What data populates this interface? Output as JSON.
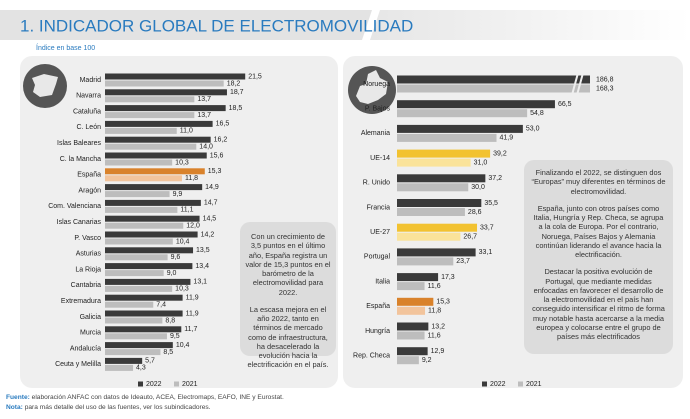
{
  "header": {
    "title": "1. INDICADOR GLOBAL DE ELECTROMOVILIDAD",
    "subtitle": "Índice en base 100"
  },
  "chart_data": [
    {
      "type": "hbar",
      "categories": [
        "Madrid",
        "Navarra",
        "Cataluña",
        "C. León",
        "Islas Baleares",
        "C. la Mancha",
        "España",
        "Aragón",
        "Com. Valenciana",
        "Islas Canarias",
        "P. Vasco",
        "Asturias",
        "La Rioja",
        "Cantabria",
        "Extremadura",
        "Galicia",
        "Murcia",
        "Andalucía",
        "Ceuta y Melilla"
      ],
      "series": [
        {
          "name": "2022",
          "color": "#3a3a3a",
          "colors": [
            "#3a3a3a",
            "#3a3a3a",
            "#3a3a3a",
            "#3a3a3a",
            "#3a3a3a",
            "#3a3a3a",
            "#d9822b",
            "#3a3a3a",
            "#3a3a3a",
            "#3a3a3a",
            "#3a3a3a",
            "#3a3a3a",
            "#3a3a3a",
            "#3a3a3a",
            "#3a3a3a",
            "#3a3a3a",
            "#3a3a3a",
            "#3a3a3a",
            "#3a3a3a"
          ],
          "values": [
            21.5,
            18.7,
            18.5,
            16.5,
            16.2,
            15.6,
            15.3,
            14.9,
            14.7,
            14.5,
            14.2,
            13.5,
            13.4,
            13.1,
            11.9,
            11.9,
            11.7,
            10.4,
            5.7
          ],
          "value_labels": [
            "21,5",
            "18,7",
            "18,5",
            "16,5",
            "16,2",
            "15,6",
            "15,3",
            "14,9",
            "14,7",
            "14,5",
            "14,2",
            "13,5",
            "13,4",
            "13,1",
            "11,9",
            "11,9",
            "11,7",
            "10,4",
            "5,7"
          ]
        },
        {
          "name": "2021",
          "color": "#bdbdbd",
          "colors": [
            "#bdbdbd",
            "#bdbdbd",
            "#bdbdbd",
            "#bdbdbd",
            "#bdbdbd",
            "#bdbdbd",
            "#f2c49c",
            "#bdbdbd",
            "#bdbdbd",
            "#bdbdbd",
            "#bdbdbd",
            "#bdbdbd",
            "#bdbdbd",
            "#bdbdbd",
            "#bdbdbd",
            "#bdbdbd",
            "#bdbdbd",
            "#bdbdbd",
            "#bdbdbd"
          ],
          "values": [
            18.2,
            13.7,
            13.7,
            11.0,
            14.0,
            10.3,
            11.8,
            9.9,
            11.1,
            12.0,
            10.4,
            9.6,
            9.0,
            10.3,
            7.4,
            8.8,
            9.5,
            8.5,
            4.3
          ],
          "value_labels": [
            "18,2",
            "13,7",
            "13,7",
            "11,0",
            "14,0",
            "10,3",
            "11,8",
            "9,9",
            "11,1",
            "12,0",
            "10,4",
            "9,6",
            "9,0",
            "10,3",
            "7,4",
            "8,8",
            "9,5",
            "8,5",
            "4,3"
          ]
        }
      ],
      "xlim": [
        0,
        23
      ]
    },
    {
      "type": "hbar",
      "categories": [
        "Noruega",
        "P. Bajos",
        "Alemania",
        "UE-14",
        "R. Unido",
        "Francia",
        "UE-27",
        "Portugal",
        "Italia",
        "España",
        "Hungría",
        "Rep. Checa"
      ],
      "series": [
        {
          "name": "2022",
          "color": "#3a3a3a",
          "colors": [
            "#3a3a3a",
            "#3a3a3a",
            "#3a3a3a",
            "#f2c230",
            "#3a3a3a",
            "#3a3a3a",
            "#f2c230",
            "#3a3a3a",
            "#3a3a3a",
            "#d9822b",
            "#3a3a3a",
            "#3a3a3a"
          ],
          "values": [
            186.8,
            66.5,
            53.0,
            39.2,
            37.2,
            35.5,
            33.7,
            33.1,
            17.3,
            15.3,
            13.2,
            12.9
          ],
          "value_labels": [
            "186,8",
            "66,5",
            "53,0",
            "39,2",
            "37,2",
            "35,5",
            "33,7",
            "33,1",
            "17,3",
            "15,3",
            "13,2",
            "12,9"
          ]
        },
        {
          "name": "2021",
          "color": "#bdbdbd",
          "colors": [
            "#bdbdbd",
            "#bdbdbd",
            "#bdbdbd",
            "#fae39a",
            "#bdbdbd",
            "#bdbdbd",
            "#fae39a",
            "#bdbdbd",
            "#bdbdbd",
            "#f2c49c",
            "#bdbdbd",
            "#bdbdbd"
          ],
          "values": [
            168.3,
            54.8,
            41.9,
            31.0,
            30.0,
            28.6,
            26.7,
            23.7,
            11.6,
            11.8,
            11.6,
            9.2
          ],
          "value_labels": [
            "168,3",
            "54,8",
            "41,9",
            "31,0",
            "30,0",
            "28,6",
            "26,7",
            "23,7",
            "11,6",
            "11,8",
            "11,6",
            "9,2"
          ]
        }
      ],
      "xlim": [
        0,
        80
      ],
      "axis_break": true
    }
  ],
  "notes": [
    [
      "Con un crecimiento de 3,5 puntos en el último año, España registra un valor de 15,3 puntos en el barómetro de la electromovilidad para 2022.",
      "La escasa mejora en el año 2022, tanto en términos de mercado como de infraestructura, ha desacelerado la evolución hacia la electrificación en el país."
    ],
    [
      "Finalizando el 2022, se distinguen dos “Europas” muy diferentes en términos de electromovilidad.",
      "España, junto con otros países como Italia, Hungría y Rep. Checa, se agrupa a la cola de Europa. Por el contrario, Noruega, Países Bajos y Alemania continúan liderando el avance hacia la electrificación.",
      "Destacar la positiva evolución de Portugal, que mediante medidas enfocadas en favorecer el desarrollo de la electromovilidad en el país han conseguido intensificar el ritmo de forma muy notable hasta acercarse a la media europea y colocarse entre el grupo de países más electrificados"
    ]
  ],
  "footer": {
    "source_label": "Fuente:",
    "source": "elaboración ANFAC con datos de Ideauto, ACEA, Electromaps, EAFO, INE y Eurostat.",
    "note_label": "Nota:",
    "note": "para más detalle del uso de las fuentes, ver los subindicadores."
  }
}
